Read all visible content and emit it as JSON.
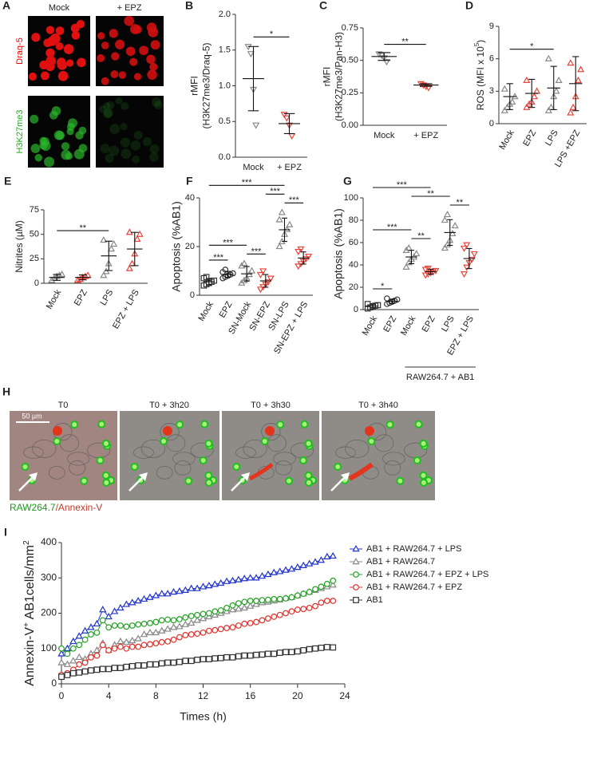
{
  "image_panels": {
    "A": {
      "letter": "A",
      "columns": [
        "Mock",
        "+ EPZ"
      ],
      "rows": [
        "Draq-5",
        "H3K27me3"
      ]
    },
    "H": {
      "letter": "H",
      "frames": [
        "T0",
        "T0 + 3h20",
        "T0 + 3h30",
        "T0 + 3h40"
      ],
      "scale_bar": "50 µm",
      "caption": [
        "RAW264.7",
        "/Annexin-V"
      ]
    }
  },
  "chart_data": [
    {
      "panel": "B",
      "type": "strip",
      "ylabel": [
        "rMFI",
        "(H3K27me3/Draq-5)"
      ],
      "categories": [
        "Mock",
        "+ EPZ"
      ],
      "colors": [
        "#888888",
        "#e8453c"
      ],
      "markers": [
        "triangle-down",
        "triangle-down"
      ],
      "points": [
        [
          1.55,
          1.45,
          0.95,
          0.45
        ],
        [
          0.6,
          0.55,
          0.45,
          0.3
        ]
      ],
      "means": [
        1.1,
        0.47
      ],
      "sds": [
        0.45,
        0.14
      ],
      "ylim": [
        0,
        2
      ],
      "yticks": [
        {
          "value": 0,
          "label": "0.0"
        },
        {
          "value": 0.5,
          "label": "0.5"
        },
        {
          "value": 1,
          "label": "1.0"
        },
        {
          "value": 1.5,
          "label": "1.5"
        },
        {
          "value": 2,
          "label": "2.0"
        }
      ],
      "significance": [
        {
          "pair": [
            0,
            1
          ],
          "label": "*"
        }
      ]
    },
    {
      "panel": "C",
      "type": "strip",
      "ylabel": [
        "rMFI",
        "(H3K27me3/Pan-H3)"
      ],
      "categories": [
        "Mock",
        "+ EPZ"
      ],
      "colors": [
        "#888888",
        "#e8453c"
      ],
      "markers": [
        "triangle-down",
        "triangle-down"
      ],
      "points": [
        [
          0.55,
          0.54,
          0.52,
          0.49
        ],
        [
          0.32,
          0.31,
          0.3,
          0.29
        ]
      ],
      "means": [
        0.53,
        0.31
      ],
      "sds": [
        0.03,
        0.01
      ],
      "ylim": [
        0,
        0.75
      ],
      "yticks": [
        {
          "value": 0,
          "label": "0.00"
        },
        {
          "value": 0.25,
          "label": "0.25"
        },
        {
          "value": 0.5,
          "label": "0.50"
        },
        {
          "value": 0.75,
          "label": "0.75"
        }
      ],
      "significance": [
        {
          "pair": [
            0,
            1
          ],
          "label": "**"
        }
      ]
    },
    {
      "panel": "D",
      "type": "strip",
      "ylabel": [
        [
          {
            "text": "ROS (MFI x 10"
          },
          {
            "text": "5",
            "sup": true
          },
          {
            "text": ")"
          }
        ]
      ],
      "categories": [
        "Mock",
        "EPZ",
        "LPS",
        "LPS +EPZ"
      ],
      "rotate_labels": true,
      "colors": [
        "#888888",
        "#e8453c",
        "#888888",
        "#e8453c"
      ],
      "markers": [
        "triangle-up",
        "triangle-up",
        "triangle-up",
        "triangle-up"
      ],
      "points": [
        [
          1.2,
          1.5,
          1.8,
          2.0,
          2.5,
          3.2
        ],
        [
          1.5,
          1.8,
          2.0,
          2.5,
          3.0,
          4.0
        ],
        [
          1.2,
          1.5,
          2.5,
          3.0,
          4.0,
          6.0
        ],
        [
          1.0,
          1.5,
          2.5,
          4.0,
          5.0,
          5.6
        ]
      ],
      "means": [
        2.5,
        2.8,
        3.3,
        3.7
      ],
      "sds": [
        1.2,
        1.3,
        2.0,
        2.5
      ],
      "ylim": [
        0,
        9
      ],
      "yticks": [
        0,
        3,
        6,
        9
      ],
      "significance": [
        {
          "pair": [
            0,
            2
          ],
          "label": "*"
        }
      ]
    },
    {
      "panel": "E",
      "type": "strip",
      "ylabel": [
        "Nitrites (µM)"
      ],
      "categories": [
        "Mock",
        "EPZ",
        "LPS",
        "EPZ + LPS"
      ],
      "rotate_labels": true,
      "colors": [
        "#888888",
        "#e8453c",
        "#888888",
        "#e8453c"
      ],
      "markers": [
        "triangle-up",
        "triangle-up",
        "triangle-up",
        "triangle-up"
      ],
      "points": [
        [
          3,
          5,
          7,
          8,
          9
        ],
        [
          3,
          4,
          6,
          7,
          8
        ],
        [
          8,
          12,
          20,
          35,
          40,
          44
        ],
        [
          15,
          20,
          30,
          45,
          50,
          52
        ]
      ],
      "means": [
        6,
        6,
        28,
        35
      ],
      "sds": [
        3,
        2.5,
        15,
        17
      ],
      "ylim": [
        0,
        75
      ],
      "yticks": [
        0,
        25,
        50,
        75
      ],
      "significance": [
        {
          "pair": [
            0,
            2
          ],
          "label": "**"
        }
      ]
    },
    {
      "panel": "F",
      "type": "strip",
      "ylabel": [
        "Apoptosis (%AB1)"
      ],
      "categories": [
        "Mock",
        "EPZ",
        "SN-Mock",
        "SN-EPZ",
        "SN-LPS",
        "SN-EPZ + LPS"
      ],
      "rotate_labels": true,
      "colors": [
        "#333333",
        "#333333",
        "#888888",
        "#e8453c",
        "#888888",
        "#e8453c"
      ],
      "markers": [
        "square",
        "circle",
        "triangle-up",
        "triangle-down",
        "triangle-up",
        "triangle-down"
      ],
      "points": [
        [
          4,
          4.5,
          5,
          5.5,
          6,
          7,
          7.5
        ],
        [
          7,
          7.5,
          8,
          8.5,
          9,
          9.5,
          10.5
        ],
        [
          5,
          6,
          7,
          8.5,
          10,
          12,
          13
        ],
        [
          2.5,
          3.5,
          4.5,
          5.5,
          7,
          8.5,
          10
        ],
        [
          20,
          22,
          25,
          27,
          29,
          31,
          34
        ],
        [
          12,
          13,
          14,
          15,
          16,
          18,
          19
        ]
      ],
      "means": [
        5.6,
        8.6,
        8.8,
        5.9,
        26.9,
        15.3
      ],
      "sds": [
        1.3,
        1.2,
        3,
        2.6,
        4.8,
        2.5
      ],
      "ylim": [
        0,
        40
      ],
      "yticks": [
        0,
        20,
        40
      ],
      "significance": [
        {
          "pair": [
            0,
            1
          ],
          "label": "***"
        },
        {
          "pair": [
            2,
            3
          ],
          "label": "***"
        },
        {
          "pair": [
            0,
            2
          ],
          "label": "***"
        },
        {
          "pair": [
            4,
            5
          ],
          "label": "***"
        },
        {
          "pair": [
            3,
            4
          ],
          "label": "***"
        },
        {
          "pair": [
            0,
            4
          ],
          "label": "***"
        }
      ]
    },
    {
      "panel": "G",
      "type": "strip",
      "ylabel": [
        "Apoptosis (%AB1)"
      ],
      "categories": [
        "Mock",
        "EPZ",
        "Mock",
        "EPZ",
        "LPS",
        "EPZ + LPS"
      ],
      "rotate_labels": true,
      "colors": [
        "#333333",
        "#333333",
        "#888888",
        "#e8453c",
        "#888888",
        "#e8453c"
      ],
      "markers": [
        "square",
        "circle",
        "triangle-up",
        "triangle-down",
        "triangle-up",
        "triangle-down"
      ],
      "points": [
        [
          1,
          2,
          3,
          3.5,
          4,
          5
        ],
        [
          5,
          6,
          7,
          8,
          9,
          10
        ],
        [
          38,
          42,
          45,
          47,
          50,
          53,
          55
        ],
        [
          31,
          32,
          33,
          34,
          35,
          36,
          37
        ],
        [
          55,
          58,
          62,
          68,
          75,
          80,
          85
        ],
        [
          32,
          38,
          42,
          45,
          50,
          55,
          58
        ]
      ],
      "means": [
        3.1,
        7.5,
        47.1,
        34,
        69,
        45.7
      ],
      "sds": [
        1.4,
        1.9,
        6,
        2.2,
        11.5,
        9
      ],
      "ylim": [
        0,
        100
      ],
      "yticks": [
        0,
        20,
        40,
        60,
        80,
        100
      ],
      "group_label": "RAW264.7 + AB1",
      "group_span": [
        2,
        5
      ],
      "significance": [
        {
          "pair": [
            0,
            1
          ],
          "label": "*"
        },
        {
          "pair": [
            2,
            3
          ],
          "label": "**"
        },
        {
          "pair": [
            4,
            5
          ],
          "label": "**"
        },
        {
          "pair": [
            0,
            3
          ],
          "label": "***"
        },
        {
          "pair": [
            0,
            2
          ],
          "label": "***"
        },
        {
          "pair": [
            2,
            4
          ],
          "label": "**"
        }
      ]
    },
    {
      "panel": "I",
      "type": "line",
      "ylabel": [
        [
          {
            "text": "Annexin-V"
          },
          {
            "text": "+",
            "sup": true
          },
          {
            "text": " AB1cells/mm"
          },
          {
            "text": "2",
            "sup": true
          }
        ]
      ],
      "xlabel": "Times (h)",
      "xlim": [
        0,
        24
      ],
      "xticks": [
        0,
        4,
        8,
        12,
        16,
        20,
        24
      ],
      "ylim": [
        0,
        400
      ],
      "yticks": [
        0,
        100,
        200,
        300,
        400
      ],
      "x": [
        0,
        0.5,
        1,
        1.5,
        2,
        2.5,
        3,
        3.5,
        4,
        4.5,
        5,
        5.5,
        6,
        6.5,
        7,
        7.5,
        8,
        8.5,
        9,
        9.5,
        10,
        10.5,
        11,
        11.5,
        12,
        12.5,
        13,
        13.5,
        14,
        14.5,
        15,
        15.5,
        16,
        16.5,
        17,
        17.5,
        18,
        18.5,
        19,
        19.5,
        20,
        20.5,
        21,
        21.5,
        22,
        22.5,
        23
      ],
      "series": [
        {
          "name": "AB1 + RAW264.7 + LPS",
          "color": "#2233cc",
          "marker": "triangle-up",
          "values": [
            85,
            100,
            120,
            135,
            150,
            160,
            170,
            210,
            190,
            205,
            215,
            225,
            230,
            235,
            240,
            245,
            250,
            255,
            255,
            260,
            262,
            265,
            270,
            270,
            275,
            278,
            282,
            285,
            290,
            292,
            295,
            298,
            300,
            300,
            305,
            310,
            315,
            318,
            322,
            325,
            330,
            335,
            340,
            345,
            350,
            360,
            362
          ]
        },
        {
          "name": "AB1 + RAW264.7",
          "color": "#888888",
          "marker": "triangle-up",
          "values": [
            60,
            55,
            65,
            75,
            70,
            85,
            95,
            115,
            95,
            110,
            120,
            118,
            122,
            128,
            140,
            145,
            145,
            150,
            155,
            160,
            162,
            168,
            172,
            180,
            185,
            190,
            195,
            200,
            205,
            210,
            212,
            215,
            220,
            225,
            230,
            232,
            235,
            238,
            242,
            245,
            250,
            255,
            260,
            265,
            270,
            275,
            280
          ]
        },
        {
          "name": "AB1 + RAW264.7 + EPZ + LPS",
          "color": "#22a022",
          "marker": "circle",
          "values": [
            100,
            85,
            100,
            110,
            125,
            140,
            145,
            180,
            160,
            165,
            165,
            162,
            165,
            168,
            170,
            172,
            175,
            180,
            182,
            180,
            183,
            188,
            192,
            195,
            198,
            200,
            205,
            208,
            215,
            222,
            228,
            232,
            235,
            235,
            237,
            238,
            240,
            240,
            242,
            245,
            250,
            255,
            260,
            268,
            275,
            283,
            292
          ]
        },
        {
          "name": "AB1 + RAW264.7 + EPZ",
          "color": "#e0302a",
          "marker": "circle",
          "values": [
            25,
            30,
            40,
            55,
            60,
            75,
            80,
            110,
            95,
            100,
            105,
            100,
            105,
            105,
            110,
            112,
            115,
            118,
            120,
            125,
            132,
            138,
            140,
            142,
            145,
            150,
            152,
            155,
            158,
            160,
            165,
            170,
            172,
            175,
            180,
            185,
            190,
            195,
            200,
            205,
            210,
            212,
            215,
            220,
            230,
            235,
            235
          ]
        },
        {
          "name": "AB1",
          "color": "#333333",
          "marker": "square",
          "values": [
            20,
            25,
            30,
            32,
            35,
            38,
            40,
            42,
            42,
            45,
            45,
            48,
            50,
            52,
            52,
            55,
            55,
            58,
            60,
            60,
            62,
            65,
            65,
            68,
            70,
            70,
            72,
            73,
            75,
            75,
            78,
            80,
            80,
            82,
            83,
            85,
            85,
            88,
            90,
            90,
            92,
            95,
            98,
            100,
            102,
            104,
            103
          ]
        }
      ]
    }
  ]
}
